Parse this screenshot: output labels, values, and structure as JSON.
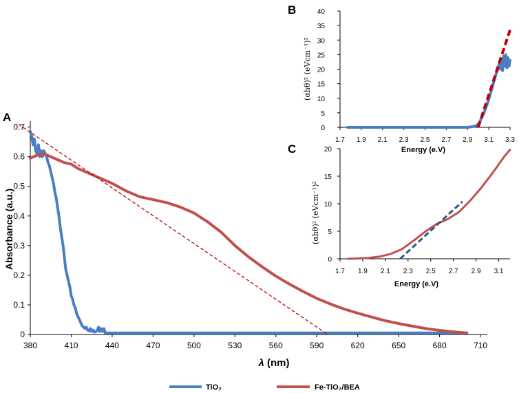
{
  "colors": {
    "tio2": "#4a7ec2",
    "fe": "#c0504d",
    "fit_dashed": "#c00000",
    "fit_c": "#2e5a8a",
    "axis": "#000000"
  },
  "legend": {
    "tio2": "TiO₂",
    "fe": "Fe-TiO₂/BEA"
  },
  "chart_data": [
    {
      "id": "A",
      "label": "A",
      "type": "line",
      "xlabel": "λ (nm)",
      "xlabel_italic": "λ",
      "xlabel_unit": " (nm)",
      "ylabel": "Absorbance (a.u.)",
      "xlim": [
        380,
        715
      ],
      "ylim": [
        0,
        0.72
      ],
      "xticks": [
        "380",
        "410",
        "440",
        "470",
        "500",
        "530",
        "560",
        "590",
        "620",
        "650",
        "680",
        "710"
      ],
      "yticks": [
        "0",
        "0.1",
        "0.2",
        "0.3",
        "0.4",
        "0.5",
        "0.6",
        "0.7"
      ],
      "series": [
        {
          "name": "TiO₂",
          "color": "#4a7ec2",
          "x": [
            380,
            381,
            382,
            383,
            384,
            385,
            386,
            387,
            388,
            389,
            390,
            391,
            392,
            393,
            394,
            395,
            396,
            397,
            398,
            399,
            400,
            401,
            402,
            403,
            404,
            405,
            406,
            407,
            408,
            409,
            410,
            411,
            412,
            413,
            414,
            415,
            416,
            417,
            418,
            419,
            420,
            421,
            422,
            423,
            424,
            425,
            426,
            427,
            428,
            429,
            430,
            431,
            432,
            433,
            434,
            435,
            440,
            500,
            600,
            700
          ],
          "y": [
            0.685,
            0.67,
            0.64,
            0.66,
            0.62,
            0.61,
            0.64,
            0.6,
            0.62,
            0.6,
            0.62,
            0.61,
            0.6,
            0.58,
            0.57,
            0.55,
            0.53,
            0.51,
            0.48,
            0.46,
            0.43,
            0.4,
            0.36,
            0.33,
            0.3,
            0.26,
            0.22,
            0.2,
            0.18,
            0.16,
            0.13,
            0.12,
            0.1,
            0.09,
            0.07,
            0.06,
            0.05,
            0.04,
            0.03,
            0.025,
            0.02,
            0.025,
            0.015,
            0.012,
            0.02,
            0.01,
            0.015,
            0.008,
            0.01,
            0.012,
            0.025,
            0.01,
            0.02,
            0.01,
            0.02,
            0.005,
            0.005,
            0.005,
            0.005,
            0.005
          ]
        },
        {
          "name": "Fe-TiO₂/BEA",
          "color": "#c0504d",
          "x": [
            380,
            385,
            390,
            395,
            400,
            405,
            410,
            415,
            420,
            425,
            430,
            440,
            450,
            460,
            470,
            480,
            490,
            500,
            510,
            520,
            530,
            540,
            550,
            560,
            570,
            580,
            590,
            600,
            610,
            620,
            630,
            640,
            650,
            660,
            670,
            680,
            690,
            700
          ],
          "y": [
            0.595,
            0.605,
            0.61,
            0.6,
            0.59,
            0.58,
            0.575,
            0.56,
            0.55,
            0.54,
            0.53,
            0.51,
            0.485,
            0.465,
            0.455,
            0.445,
            0.43,
            0.41,
            0.38,
            0.345,
            0.3,
            0.262,
            0.228,
            0.197,
            0.17,
            0.145,
            0.122,
            0.103,
            0.086,
            0.072,
            0.059,
            0.047,
            0.037,
            0.028,
            0.02,
            0.014,
            0.009,
            0.005
          ]
        }
      ],
      "fit_line": {
        "x": [
          368,
          598
        ],
        "y": [
          0.72,
          0.0
        ]
      }
    },
    {
      "id": "B",
      "label": "B",
      "type": "line",
      "xlabel": "Energy (e.V)",
      "ylabel": "(αhθ)² (eVcm⁻¹)²",
      "xlim": [
        1.7,
        3.3
      ],
      "ylim": [
        0,
        40
      ],
      "xticks": [
        "1.7",
        "1.9",
        "2.1",
        "2.3",
        "2.5",
        "2.7",
        "2.9",
        "3.1",
        "3.3"
      ],
      "yticks": [
        "0",
        "5",
        "10",
        "15",
        "20",
        "25",
        "30",
        "35",
        "40"
      ],
      "series": [
        {
          "name": "TiO₂",
          "color": "#4a7ec2",
          "x": [
            1.77,
            2.5,
            2.9,
            2.96,
            2.99,
            3.01,
            3.03,
            3.05,
            3.07,
            3.09,
            3.11,
            3.13,
            3.15,
            3.17,
            3.19,
            3.2,
            3.21,
            3.22,
            3.23,
            3.24,
            3.25,
            3.26,
            3.27,
            3.28,
            3.29,
            3.3
          ],
          "y": [
            0,
            0,
            0,
            0.3,
            0.8,
            1.5,
            3,
            4.5,
            6.5,
            8.5,
            11,
            13.5,
            16,
            18.5,
            20.5,
            22.5,
            20,
            23.5,
            19.5,
            24.5,
            21,
            25,
            20.5,
            24,
            21,
            23
          ]
        }
      ],
      "fit_line": {
        "x": [
          3.0,
          3.3
        ],
        "y": [
          0,
          33.5
        ]
      }
    },
    {
      "id": "C",
      "label": "C",
      "type": "line",
      "xlabel": "Energy (e.V)",
      "ylabel": "(αhθ)² (eVcm⁻¹)²",
      "xlim": [
        1.7,
        3.2
      ],
      "ylim": [
        0,
        20
      ],
      "xticks": [
        "1.7",
        "1.9",
        "2.1",
        "2.3",
        "2.5",
        "2.7",
        "2.9",
        "3.1"
      ],
      "yticks": [
        "0",
        "5",
        "10",
        "15",
        "20"
      ],
      "series": [
        {
          "name": "Fe-TiO₂/BEA",
          "color": "#c0504d",
          "x": [
            1.77,
            1.85,
            1.95,
            2.05,
            2.15,
            2.25,
            2.35,
            2.45,
            2.55,
            2.65,
            2.75,
            2.85,
            2.95,
            3.05,
            3.15,
            3.2
          ],
          "y": [
            0,
            0.05,
            0.15,
            0.4,
            0.9,
            1.8,
            3.3,
            4.9,
            6.3,
            7.2,
            8.5,
            10.6,
            13.0,
            15.7,
            18.6,
            19.8
          ]
        }
      ],
      "fit_line": {
        "x": [
          2.23,
          2.78
        ],
        "y": [
          0,
          10.4
        ]
      }
    }
  ]
}
